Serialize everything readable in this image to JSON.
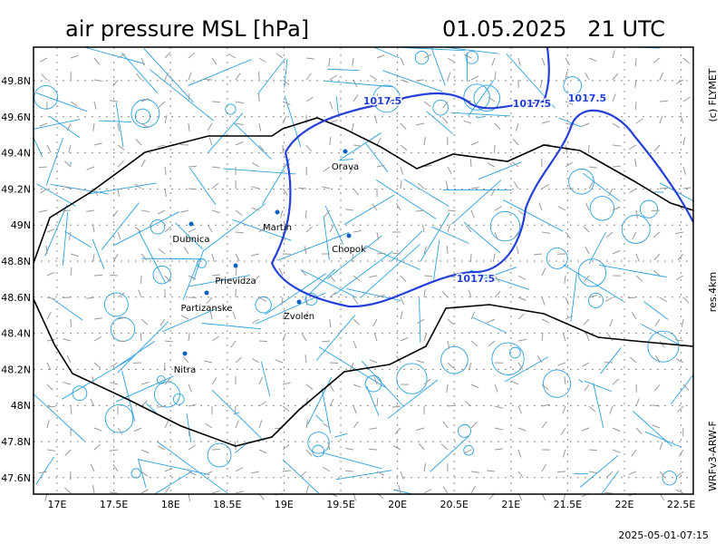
{
  "header": {
    "title": "air pressure MSL [hPa]",
    "valid_time": "01.05.2025   21 UTC"
  },
  "side_labels": {
    "copyright": "(c) FLYMET",
    "resolution": "res.4km",
    "model": "WRFv3-ARW-F"
  },
  "axes": {
    "x_ticks": [
      "17E",
      "17.5E",
      "18E",
      "18.5E",
      "19E",
      "19.5E",
      "20E",
      "20.5E",
      "21E",
      "21.5E",
      "22E",
      "22.5E"
    ],
    "y_ticks": [
      "49.8N",
      "49.6N",
      "49.4N",
      "49.2N",
      "49N",
      "48.8N",
      "48.6N",
      "48.4N",
      "48.2N",
      "48N",
      "47.8N",
      "47.6N"
    ]
  },
  "cities": [
    "Orava",
    "Martin",
    "Dubnica",
    "Chopok",
    "Prievidza",
    "Partizanske",
    "Zvolen",
    "Nitra"
  ],
  "isobar_labels": [
    "1017.5",
    "1017.5",
    "1017.5",
    "1017.5"
  ],
  "footer": {
    "run_time": "2025-05-01-07:15"
  }
}
